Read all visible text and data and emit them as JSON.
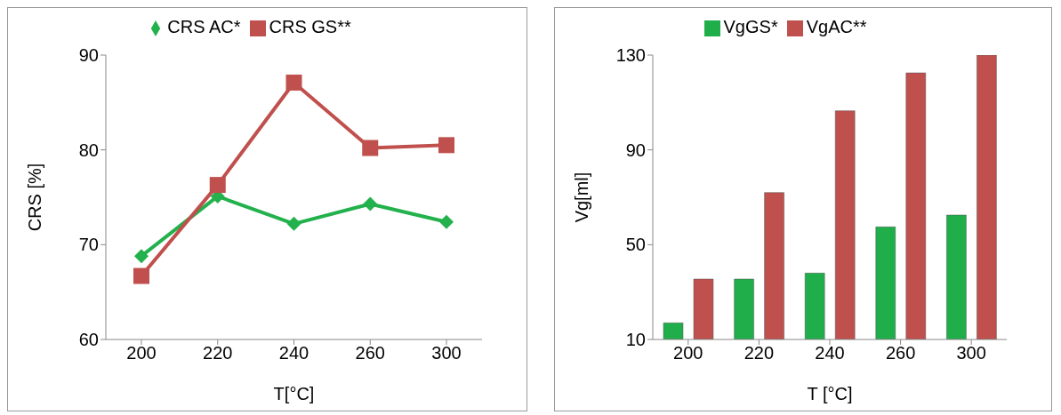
{
  "chart_data": [
    {
      "type": "line",
      "categories": [
        "200",
        "220",
        "240",
        "260",
        "300"
      ],
      "xlabel": "T[°C]",
      "ylabel": "CRS [%]",
      "ylim": [
        60,
        90
      ],
      "yticks": [
        60,
        70,
        80,
        90
      ],
      "legend": "top",
      "line_style": "solid",
      "series": [
        {
          "name": "CRS AC*",
          "color": "#22b14c",
          "marker": "diamond",
          "values": [
            68.8,
            75.1,
            72.2,
            74.3,
            72.4
          ]
        },
        {
          "name": "CRS GS**",
          "color": "#c0504d",
          "marker": "square",
          "values": [
            66.7,
            76.3,
            87.1,
            80.2,
            80.5
          ]
        }
      ]
    },
    {
      "type": "bar",
      "categories": [
        "200",
        "220",
        "240",
        "260",
        "300"
      ],
      "xlabel": "T [°C]",
      "ylabel": "Vg[ml]",
      "ylim": [
        10,
        130
      ],
      "yticks": [
        10,
        50,
        90,
        130
      ],
      "legend": "top",
      "series": [
        {
          "name": "VgGS*",
          "color": "#1fae4a",
          "values": [
            17,
            35.5,
            38,
            57.5,
            62.5
          ]
        },
        {
          "name": "VgAC**",
          "color": "#c0504d",
          "values": [
            35.5,
            72,
            106.5,
            122.5,
            130
          ]
        }
      ]
    }
  ]
}
